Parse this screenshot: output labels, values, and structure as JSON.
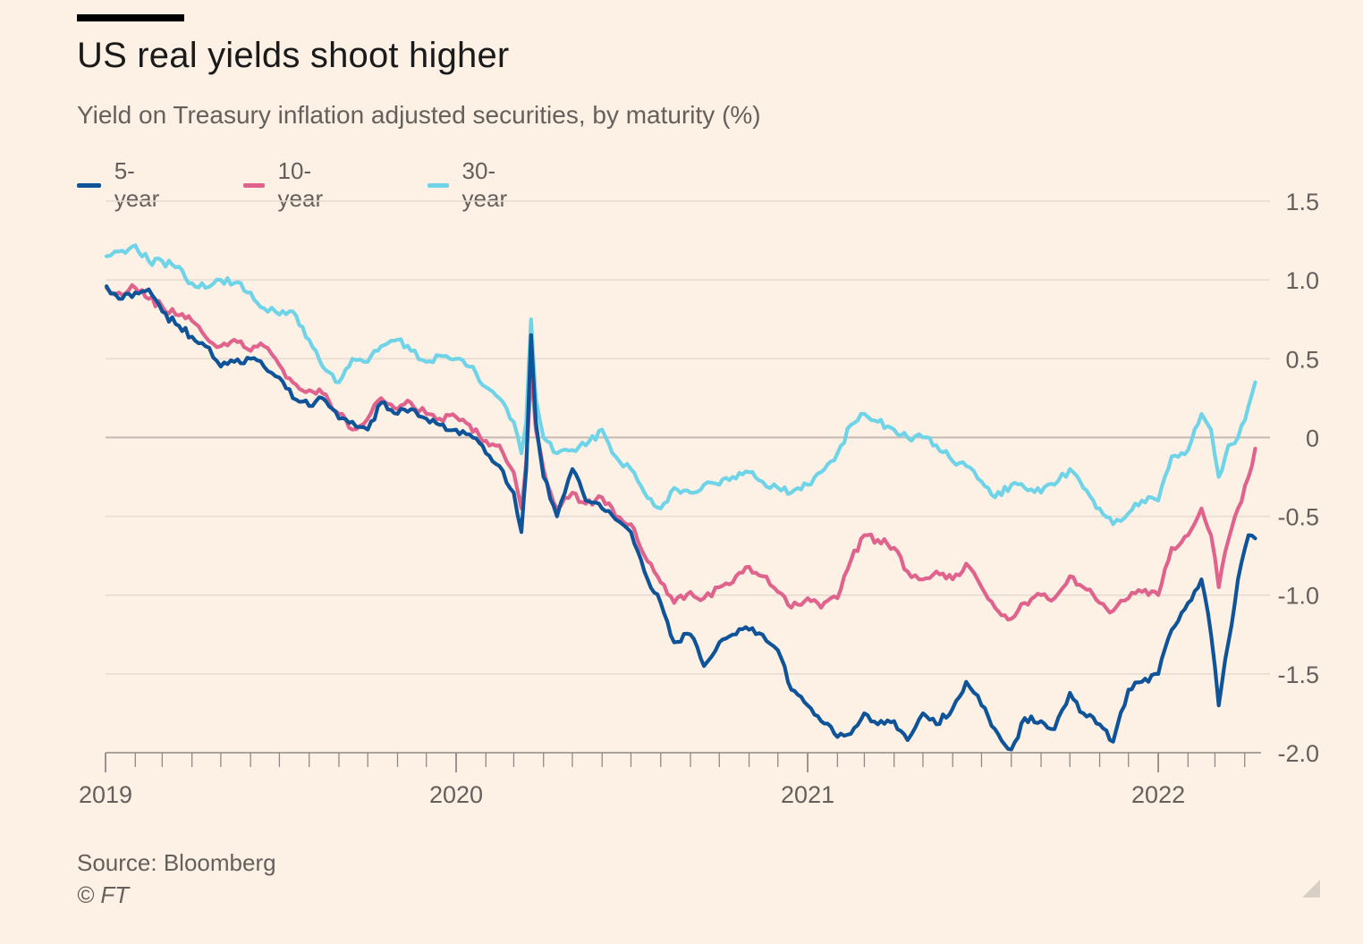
{
  "header": {
    "title": "US real yields shoot higher",
    "subtitle": "Yield on Treasury inflation adjusted securities, by maturity (%)"
  },
  "legend": [
    {
      "label": "5-year",
      "color": "#0f5499"
    },
    {
      "label": "10-year",
      "color": "#e0638d"
    },
    {
      "label": "30-year",
      "color": "#6fd4e8"
    }
  ],
  "footer": {
    "source": "Source: Bloomberg",
    "credit": "© FT"
  },
  "chart_data": {
    "type": "line",
    "title": "US real yields shoot higher",
    "subtitle": "Yield on Treasury inflation adjusted securities, by maturity (%)",
    "xlabel": "",
    "ylabel": "",
    "x_ticks": [
      "2019",
      "2020",
      "2021",
      "2022"
    ],
    "xlim": [
      "2019-01-01",
      "2022-04-12"
    ],
    "y_ticks": [
      1.5,
      1.0,
      0.5,
      0,
      -0.5,
      -1.0,
      -1.5,
      -2.0
    ],
    "y_tick_labels": [
      "1.5",
      "1.0",
      "0.5",
      "0",
      "-0.5",
      "-1.0",
      "-1.5",
      "-2.0"
    ],
    "ylim": [
      -2.0,
      1.5
    ],
    "grid": true,
    "y_axis_side": "right",
    "legend_position": "top-left",
    "series": [
      {
        "name": "5-year",
        "color": "#0f5499",
        "points": [
          [
            "2019-01-02",
            0.96
          ],
          [
            "2019-01-15",
            0.88
          ],
          [
            "2019-02-01",
            0.92
          ],
          [
            "2019-02-15",
            0.94
          ],
          [
            "2019-03-01",
            0.8
          ],
          [
            "2019-03-15",
            0.72
          ],
          [
            "2019-04-01",
            0.64
          ],
          [
            "2019-04-15",
            0.58
          ],
          [
            "2019-05-01",
            0.45
          ],
          [
            "2019-05-15",
            0.48
          ],
          [
            "2019-06-01",
            0.5
          ],
          [
            "2019-06-15",
            0.45
          ],
          [
            "2019-07-01",
            0.38
          ],
          [
            "2019-07-15",
            0.25
          ],
          [
            "2019-08-01",
            0.2
          ],
          [
            "2019-08-15",
            0.25
          ],
          [
            "2019-09-01",
            0.12
          ],
          [
            "2019-09-15",
            0.1
          ],
          [
            "2019-10-01",
            0.05
          ],
          [
            "2019-10-15",
            0.22
          ],
          [
            "2019-11-01",
            0.15
          ],
          [
            "2019-11-15",
            0.18
          ],
          [
            "2019-12-01",
            0.12
          ],
          [
            "2019-12-15",
            0.08
          ],
          [
            "2020-01-01",
            0.05
          ],
          [
            "2020-01-15",
            0.02
          ],
          [
            "2020-02-01",
            -0.1
          ],
          [
            "2020-02-15",
            -0.18
          ],
          [
            "2020-03-01",
            -0.35
          ],
          [
            "2020-03-09",
            -0.6
          ],
          [
            "2020-03-14",
            -0.2
          ],
          [
            "2020-03-19",
            0.65
          ],
          [
            "2020-03-24",
            0.1
          ],
          [
            "2020-04-01",
            -0.25
          ],
          [
            "2020-04-15",
            -0.5
          ],
          [
            "2020-05-01",
            -0.2
          ],
          [
            "2020-05-15",
            -0.4
          ],
          [
            "2020-06-01",
            -0.45
          ],
          [
            "2020-06-15",
            -0.52
          ],
          [
            "2020-07-01",
            -0.6
          ],
          [
            "2020-07-15",
            -0.85
          ],
          [
            "2020-08-01",
            -1.05
          ],
          [
            "2020-08-15",
            -1.3
          ],
          [
            "2020-09-01",
            -1.25
          ],
          [
            "2020-09-15",
            -1.45
          ],
          [
            "2020-10-01",
            -1.3
          ],
          [
            "2020-10-15",
            -1.25
          ],
          [
            "2020-11-01",
            -1.22
          ],
          [
            "2020-11-15",
            -1.25
          ],
          [
            "2020-12-01",
            -1.35
          ],
          [
            "2020-12-15",
            -1.6
          ],
          [
            "2021-01-01",
            -1.7
          ],
          [
            "2021-01-15",
            -1.8
          ],
          [
            "2021-02-01",
            -1.9
          ],
          [
            "2021-02-15",
            -1.88
          ],
          [
            "2021-03-01",
            -1.75
          ],
          [
            "2021-03-15",
            -1.82
          ],
          [
            "2021-04-01",
            -1.8
          ],
          [
            "2021-04-15",
            -1.92
          ],
          [
            "2021-05-01",
            -1.75
          ],
          [
            "2021-05-15",
            -1.82
          ],
          [
            "2021-06-01",
            -1.72
          ],
          [
            "2021-06-15",
            -1.55
          ],
          [
            "2021-07-01",
            -1.7
          ],
          [
            "2021-07-15",
            -1.85
          ],
          [
            "2021-08-01",
            -1.98
          ],
          [
            "2021-08-15",
            -1.78
          ],
          [
            "2021-09-01",
            -1.8
          ],
          [
            "2021-09-15",
            -1.85
          ],
          [
            "2021-10-01",
            -1.62
          ],
          [
            "2021-10-15",
            -1.75
          ],
          [
            "2021-11-01",
            -1.82
          ],
          [
            "2021-11-15",
            -1.93
          ],
          [
            "2021-12-01",
            -1.6
          ],
          [
            "2021-12-15",
            -1.55
          ],
          [
            "2022-01-01",
            -1.5
          ],
          [
            "2022-01-15",
            -1.22
          ],
          [
            "2022-02-01",
            -1.05
          ],
          [
            "2022-02-15",
            -0.9
          ],
          [
            "2022-02-25",
            -1.25
          ],
          [
            "2022-03-05",
            -1.7
          ],
          [
            "2022-03-15",
            -1.3
          ],
          [
            "2022-03-25",
            -0.9
          ],
          [
            "2022-04-05",
            -0.62
          ],
          [
            "2022-04-12",
            -0.64
          ]
        ]
      },
      {
        "name": "10-year",
        "color": "#e0638d",
        "points": [
          [
            "2019-01-02",
            0.95
          ],
          [
            "2019-01-15",
            0.92
          ],
          [
            "2019-02-01",
            0.95
          ],
          [
            "2019-02-15",
            0.88
          ],
          [
            "2019-03-01",
            0.83
          ],
          [
            "2019-03-15",
            0.78
          ],
          [
            "2019-04-01",
            0.74
          ],
          [
            "2019-04-15",
            0.64
          ],
          [
            "2019-05-01",
            0.58
          ],
          [
            "2019-05-15",
            0.62
          ],
          [
            "2019-06-01",
            0.55
          ],
          [
            "2019-06-15",
            0.58
          ],
          [
            "2019-07-01",
            0.46
          ],
          [
            "2019-07-15",
            0.35
          ],
          [
            "2019-08-01",
            0.3
          ],
          [
            "2019-08-15",
            0.28
          ],
          [
            "2019-09-01",
            0.15
          ],
          [
            "2019-09-15",
            0.05
          ],
          [
            "2019-10-01",
            0.12
          ],
          [
            "2019-10-15",
            0.25
          ],
          [
            "2019-11-01",
            0.18
          ],
          [
            "2019-11-15",
            0.22
          ],
          [
            "2019-12-01",
            0.15
          ],
          [
            "2019-12-15",
            0.12
          ],
          [
            "2020-01-01",
            0.13
          ],
          [
            "2020-01-15",
            0.08
          ],
          [
            "2020-02-01",
            -0.02
          ],
          [
            "2020-02-15",
            -0.05
          ],
          [
            "2020-03-01",
            -0.22
          ],
          [
            "2020-03-09",
            -0.45
          ],
          [
            "2020-03-14",
            -0.15
          ],
          [
            "2020-03-19",
            0.4
          ],
          [
            "2020-03-24",
            0.05
          ],
          [
            "2020-04-01",
            -0.2
          ],
          [
            "2020-04-15",
            -0.45
          ],
          [
            "2020-05-01",
            -0.35
          ],
          [
            "2020-05-15",
            -0.42
          ],
          [
            "2020-06-01",
            -0.38
          ],
          [
            "2020-06-15",
            -0.5
          ],
          [
            "2020-07-01",
            -0.55
          ],
          [
            "2020-07-15",
            -0.75
          ],
          [
            "2020-08-01",
            -0.92
          ],
          [
            "2020-08-15",
            -1.05
          ],
          [
            "2020-09-01",
            -0.98
          ],
          [
            "2020-09-15",
            -1.02
          ],
          [
            "2020-10-01",
            -0.95
          ],
          [
            "2020-10-15",
            -0.92
          ],
          [
            "2020-11-01",
            -0.82
          ],
          [
            "2020-11-15",
            -0.88
          ],
          [
            "2020-12-01",
            -0.98
          ],
          [
            "2020-12-15",
            -1.08
          ],
          [
            "2021-01-01",
            -1.02
          ],
          [
            "2021-01-15",
            -1.08
          ],
          [
            "2021-02-01",
            -1.02
          ],
          [
            "2021-02-15",
            -0.78
          ],
          [
            "2021-03-01",
            -0.62
          ],
          [
            "2021-03-15",
            -0.65
          ],
          [
            "2021-04-01",
            -0.7
          ],
          [
            "2021-04-15",
            -0.85
          ],
          [
            "2021-05-01",
            -0.9
          ],
          [
            "2021-05-15",
            -0.85
          ],
          [
            "2021-06-01",
            -0.9
          ],
          [
            "2021-06-15",
            -0.8
          ],
          [
            "2021-07-01",
            -0.95
          ],
          [
            "2021-07-15",
            -1.08
          ],
          [
            "2021-08-01",
            -1.15
          ],
          [
            "2021-08-15",
            -1.05
          ],
          [
            "2021-09-01",
            -1.0
          ],
          [
            "2021-09-15",
            -1.02
          ],
          [
            "2021-10-01",
            -0.88
          ],
          [
            "2021-10-15",
            -0.95
          ],
          [
            "2021-11-01",
            -1.05
          ],
          [
            "2021-11-15",
            -1.1
          ],
          [
            "2021-12-01",
            -1.02
          ],
          [
            "2021-12-15",
            -0.98
          ],
          [
            "2022-01-01",
            -1.0
          ],
          [
            "2022-01-15",
            -0.7
          ],
          [
            "2022-02-01",
            -0.62
          ],
          [
            "2022-02-15",
            -0.45
          ],
          [
            "2022-02-25",
            -0.62
          ],
          [
            "2022-03-05",
            -0.95
          ],
          [
            "2022-03-15",
            -0.65
          ],
          [
            "2022-03-25",
            -0.45
          ],
          [
            "2022-04-05",
            -0.25
          ],
          [
            "2022-04-12",
            -0.07
          ]
        ]
      },
      {
        "name": "30-year",
        "color": "#6fd4e8",
        "points": [
          [
            "2019-01-02",
            1.15
          ],
          [
            "2019-01-15",
            1.18
          ],
          [
            "2019-02-01",
            1.22
          ],
          [
            "2019-02-15",
            1.12
          ],
          [
            "2019-03-01",
            1.12
          ],
          [
            "2019-03-15",
            1.08
          ],
          [
            "2019-04-01",
            0.98
          ],
          [
            "2019-04-15",
            0.95
          ],
          [
            "2019-05-01",
            1.0
          ],
          [
            "2019-05-15",
            0.98
          ],
          [
            "2019-06-01",
            0.92
          ],
          [
            "2019-06-15",
            0.82
          ],
          [
            "2019-07-01",
            0.78
          ],
          [
            "2019-07-15",
            0.8
          ],
          [
            "2019-08-01",
            0.62
          ],
          [
            "2019-08-15",
            0.45
          ],
          [
            "2019-09-01",
            0.35
          ],
          [
            "2019-09-15",
            0.5
          ],
          [
            "2019-10-01",
            0.48
          ],
          [
            "2019-10-15",
            0.58
          ],
          [
            "2019-11-01",
            0.62
          ],
          [
            "2019-11-15",
            0.55
          ],
          [
            "2019-12-01",
            0.48
          ],
          [
            "2019-12-15",
            0.52
          ],
          [
            "2020-01-01",
            0.5
          ],
          [
            "2020-01-15",
            0.45
          ],
          [
            "2020-02-01",
            0.32
          ],
          [
            "2020-02-15",
            0.25
          ],
          [
            "2020-03-01",
            0.1
          ],
          [
            "2020-03-09",
            -0.1
          ],
          [
            "2020-03-14",
            0.1
          ],
          [
            "2020-03-19",
            0.75
          ],
          [
            "2020-03-24",
            0.25
          ],
          [
            "2020-04-01",
            0.0
          ],
          [
            "2020-04-15",
            -0.1
          ],
          [
            "2020-05-01",
            -0.08
          ],
          [
            "2020-05-15",
            -0.05
          ],
          [
            "2020-06-01",
            0.05
          ],
          [
            "2020-06-15",
            -0.12
          ],
          [
            "2020-07-01",
            -0.2
          ],
          [
            "2020-07-15",
            -0.35
          ],
          [
            "2020-08-01",
            -0.45
          ],
          [
            "2020-08-15",
            -0.32
          ],
          [
            "2020-09-01",
            -0.35
          ],
          [
            "2020-09-15",
            -0.3
          ],
          [
            "2020-10-01",
            -0.3
          ],
          [
            "2020-10-15",
            -0.25
          ],
          [
            "2020-11-01",
            -0.22
          ],
          [
            "2020-11-15",
            -0.28
          ],
          [
            "2020-12-01",
            -0.32
          ],
          [
            "2020-12-15",
            -0.35
          ],
          [
            "2021-01-01",
            -0.3
          ],
          [
            "2021-01-15",
            -0.22
          ],
          [
            "2021-02-01",
            -0.1
          ],
          [
            "2021-02-15",
            0.08
          ],
          [
            "2021-03-01",
            0.15
          ],
          [
            "2021-03-15",
            0.1
          ],
          [
            "2021-04-01",
            0.05
          ],
          [
            "2021-04-15",
            0.0
          ],
          [
            "2021-05-01",
            0.0
          ],
          [
            "2021-05-15",
            -0.05
          ],
          [
            "2021-06-01",
            -0.15
          ],
          [
            "2021-06-15",
            -0.18
          ],
          [
            "2021-07-01",
            -0.28
          ],
          [
            "2021-07-15",
            -0.38
          ],
          [
            "2021-08-01",
            -0.3
          ],
          [
            "2021-08-15",
            -0.32
          ],
          [
            "2021-09-01",
            -0.35
          ],
          [
            "2021-09-15",
            -0.3
          ],
          [
            "2021-10-01",
            -0.2
          ],
          [
            "2021-10-15",
            -0.32
          ],
          [
            "2021-11-01",
            -0.45
          ],
          [
            "2021-11-15",
            -0.55
          ],
          [
            "2021-12-01",
            -0.48
          ],
          [
            "2021-12-15",
            -0.4
          ],
          [
            "2022-01-01",
            -0.4
          ],
          [
            "2022-01-15",
            -0.12
          ],
          [
            "2022-02-01",
            -0.08
          ],
          [
            "2022-02-15",
            0.15
          ],
          [
            "2022-02-25",
            0.05
          ],
          [
            "2022-03-05",
            -0.25
          ],
          [
            "2022-03-15",
            -0.05
          ],
          [
            "2022-03-25",
            0.0
          ],
          [
            "2022-04-05",
            0.2
          ],
          [
            "2022-04-12",
            0.35
          ]
        ]
      }
    ]
  }
}
